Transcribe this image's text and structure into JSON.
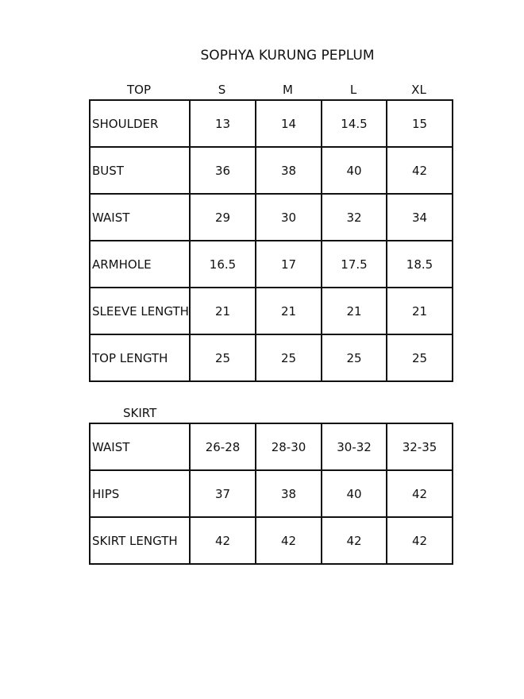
{
  "title": "SOPHYA KURUNG PEPLUM",
  "top": {
    "header": [
      "TOP",
      "S",
      "M",
      "L",
      "XL"
    ],
    "rows": [
      [
        "SHOULDER",
        "13",
        "14",
        "14.5",
        "15"
      ],
      [
        "BUST",
        "36",
        "38",
        "40",
        "42"
      ],
      [
        "WAIST",
        "29",
        "30",
        "32",
        "34"
      ],
      [
        "ARMHOLE",
        "16.5",
        "17",
        "17.5",
        "18.5"
      ],
      [
        "SLEEVE LENGTH",
        "21",
        "21",
        "21",
        "21"
      ],
      [
        "TOP LENGTH",
        "25",
        "25",
        "25",
        "25"
      ]
    ]
  },
  "skirt": {
    "label": "SKIRT",
    "rows": [
      [
        "WAIST",
        "26-28",
        "28-30",
        "30-32",
        "32-35"
      ],
      [
        "HIPS",
        "37",
        "38",
        "40",
        "42"
      ],
      [
        "SKIRT LENGTH",
        "42",
        "42",
        "42",
        "42"
      ]
    ]
  }
}
